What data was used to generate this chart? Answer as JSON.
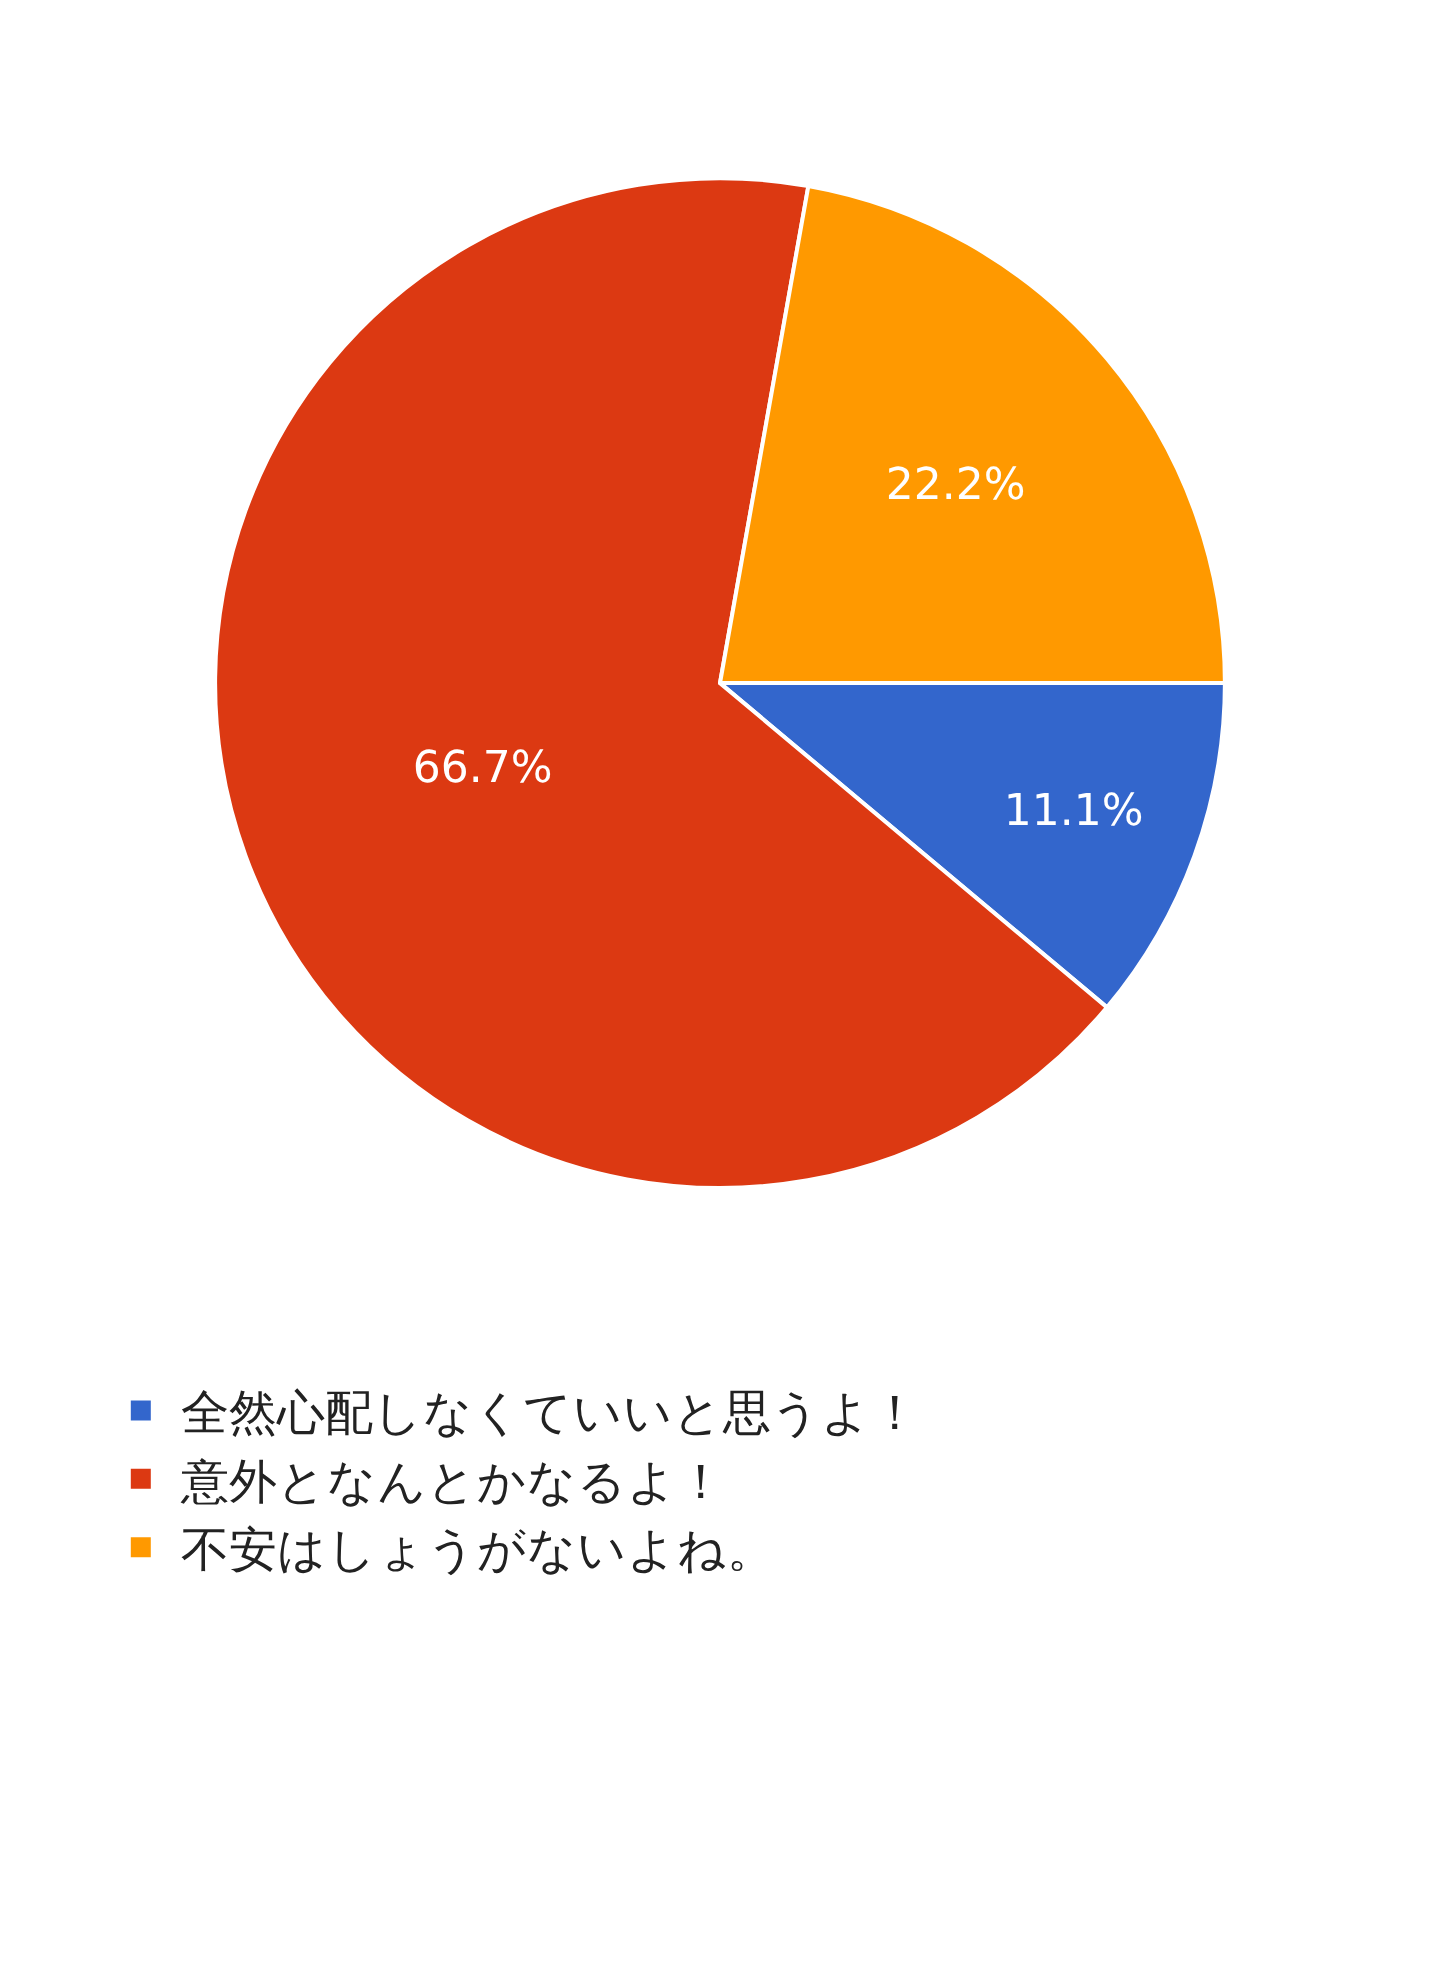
{
  "chart_data": {
    "type": "pie",
    "categories": [
      "全然心配しなくていいと思うよ！",
      "意外となんとかなるよ！",
      "不安はしょうがないよね。"
    ],
    "values": [
      11.1,
      66.7,
      22.2
    ],
    "colors": [
      "#3366cc",
      "#dc3912",
      "#ff9900"
    ],
    "value_labels": [
      "11.1%",
      "66.7%",
      "22.2%"
    ],
    "legend": "bottom"
  }
}
